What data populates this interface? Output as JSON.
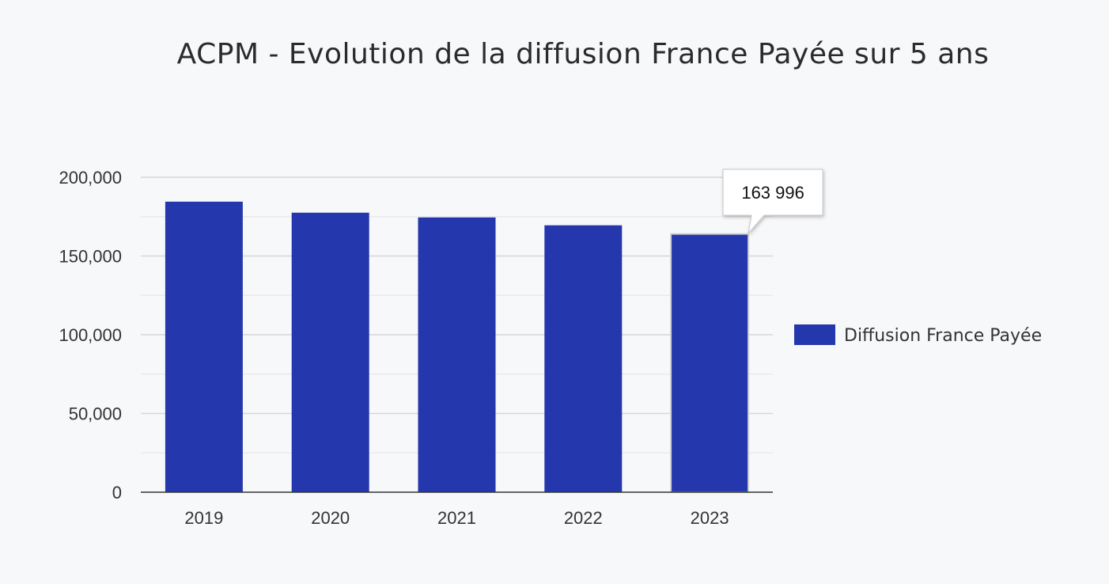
{
  "chart_data": {
    "type": "bar",
    "title": "ACPM - Evolution de la diffusion France Payée sur 5 ans",
    "xlabel": "",
    "ylabel": "",
    "categories": [
      "2019",
      "2020",
      "2021",
      "2022",
      "2023"
    ],
    "series": [
      {
        "name": "Diffusion France Payée",
        "values": [
          184500,
          177500,
          174500,
          169500,
          163996
        ],
        "color": "#2537ac"
      }
    ],
    "ylim": [
      0,
      200000
    ],
    "yticks": [
      0,
      50000,
      100000,
      150000,
      200000
    ],
    "ytick_labels": [
      "0",
      "50,000",
      "100,000",
      "150,000",
      "200,000"
    ],
    "grid": true,
    "legend_position": "right",
    "tooltip": {
      "category": "2023",
      "text": "163 996"
    }
  }
}
